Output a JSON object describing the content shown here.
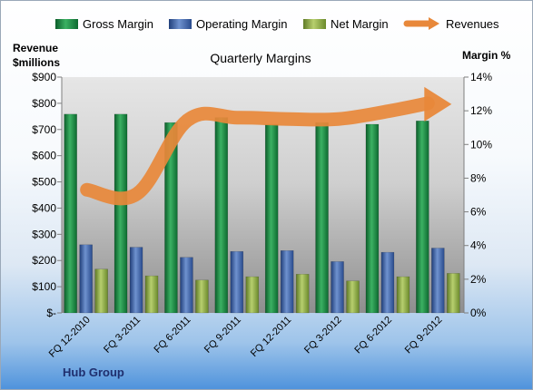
{
  "chart_data": {
    "type": "bar",
    "title": "Quarterly Margins",
    "ylabel_left": [
      "Revenue",
      "$millions"
    ],
    "ylabel_right": "Margin %",
    "company": "Hub Group",
    "categories": [
      "FQ 12-2010",
      "FQ 3-2011",
      "FQ 6-2011",
      "FQ 9-2011",
      "FQ 12-2011",
      "FQ 3-2012",
      "FQ 6-2012",
      "FQ 9-2012"
    ],
    "series": [
      {
        "name": "Gross Margin",
        "type": "bar",
        "axis": "right",
        "color": "#1f8a45",
        "values": [
          11.8,
          11.8,
          11.3,
          11.6,
          11.2,
          11.3,
          11.2,
          11.4
        ]
      },
      {
        "name": "Operating Margin",
        "type": "bar",
        "axis": "right",
        "color": "#3e64a8",
        "values": [
          4.05,
          3.9,
          3.3,
          3.65,
          3.7,
          3.05,
          3.6,
          3.85
        ]
      },
      {
        "name": "Net Margin",
        "type": "bar",
        "axis": "right",
        "color": "#8fae4a",
        "values": [
          2.6,
          2.2,
          1.95,
          2.15,
          2.3,
          1.9,
          2.15,
          2.35
        ]
      },
      {
        "name": "Revenues",
        "type": "line",
        "axis": "left",
        "color": "#e8883a",
        "values": [
          470,
          455,
          735,
          745,
          740,
          740,
          770,
          800
        ]
      }
    ],
    "left_axis": {
      "min": 0,
      "max": 900,
      "step": 100,
      "tick_labels": [
        "$-",
        "$100",
        "$200",
        "$300",
        "$400",
        "$500",
        "$600",
        "$700",
        "$800",
        "$900"
      ]
    },
    "right_axis": {
      "min": 0,
      "max": 14,
      "step": 2,
      "tick_labels": [
        "0%",
        "2%",
        "4%",
        "6%",
        "8%",
        "10%",
        "12%",
        "14%"
      ]
    },
    "legend_position": "top",
    "grid": false
  }
}
